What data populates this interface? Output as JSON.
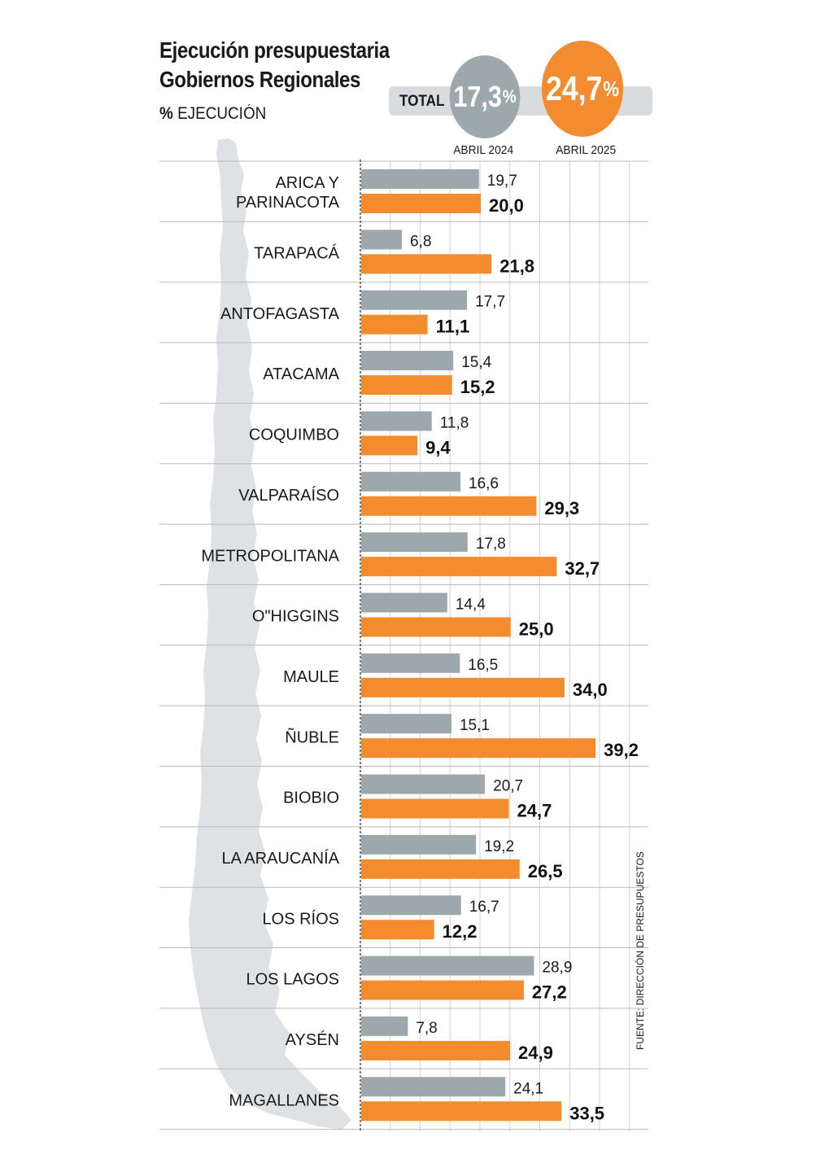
{
  "header": {
    "title_line1": "Ejecución presupuestaria",
    "title_line2": "Gobiernos Regionales",
    "subtitle_symbol": "%",
    "subtitle_text": "EJECUCIÓN",
    "total_label": "TOTAL",
    "total_2024": "17,3",
    "total_2025": "24,7",
    "pct_sign": "%",
    "year_2024": "ABRIL 2024",
    "year_2025": "ABRIL 2025"
  },
  "source": "FUENTE: DIRECCIÓN DE PRESUPUESTOS",
  "colors": {
    "series_2024": "#9da8ad",
    "series_2025": "#f28c2e",
    "map": "#dfe2e4",
    "grid": "#b9b9b9"
  },
  "chart_data": {
    "type": "bar",
    "orientation": "horizontal",
    "categories": [
      [
        "ARICA Y",
        "PARINACOTA"
      ],
      [
        "TARAPACÁ"
      ],
      [
        "ANTOFAGASTA"
      ],
      [
        "ATACAMA"
      ],
      [
        "COQUIMBO"
      ],
      [
        "VALPARAÍSO"
      ],
      [
        "METROPOLITANA"
      ],
      [
        "O\"HIGGINS"
      ],
      [
        "MAULE"
      ],
      [
        "ÑUBLE"
      ],
      [
        "BIOBIO"
      ],
      [
        "LA ARAUCANÍA"
      ],
      [
        "LOS RÍOS"
      ],
      [
        "LOS LAGOS"
      ],
      [
        "AYSÉN"
      ],
      [
        "MAGALLANES"
      ]
    ],
    "series": [
      {
        "name": "ABRIL 2024",
        "values": [
          19.7,
          6.8,
          17.7,
          15.4,
          11.8,
          16.6,
          17.8,
          14.4,
          16.5,
          15.1,
          20.7,
          19.2,
          16.7,
          28.9,
          7.8,
          24.1
        ],
        "labels": [
          "19,7",
          "6,8",
          "17,7",
          "15,4",
          "11,8",
          "16,6",
          "17,8",
          "14,4",
          "16,5",
          "15,1",
          "20,7",
          "19,2",
          "16,7",
          "28,9",
          "7,8",
          "24,1"
        ]
      },
      {
        "name": "ABRIL 2025",
        "values": [
          20.0,
          21.8,
          11.1,
          15.2,
          9.4,
          29.3,
          32.7,
          25.0,
          34.0,
          39.2,
          24.7,
          26.5,
          12.2,
          27.2,
          24.9,
          33.5
        ],
        "labels": [
          "20,0",
          "21,8",
          "11,1",
          "15,2",
          "9,4",
          "29,3",
          "32,7",
          "25,0",
          "34,0",
          "39,2",
          "24,7",
          "26,5",
          "12,2",
          "27,2",
          "24,9",
          "33,5"
        ]
      }
    ],
    "xlim": [
      0,
      50
    ],
    "grid": true
  }
}
